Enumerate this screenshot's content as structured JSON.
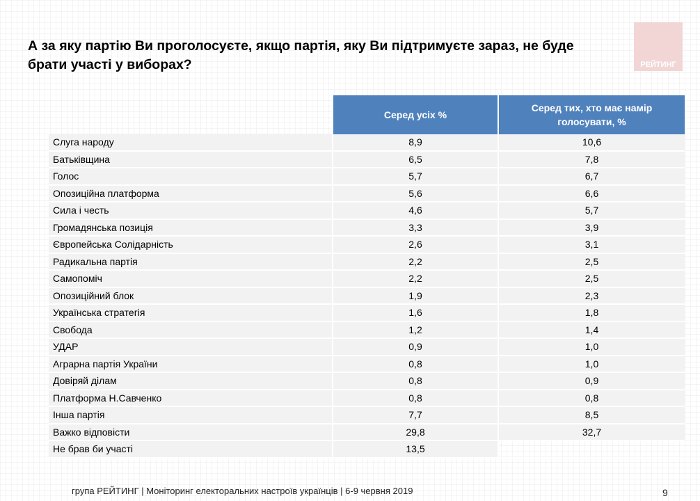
{
  "title": "А за яку партію Ви проголосуєте, якщо партія, яку Ви підтримуєте зараз, не буде брати участі у виборах?",
  "logo": "РЕЙТИНГ",
  "table": {
    "headers": [
      "Серед усіх %",
      "Серед тих, хто має намір голосувати, %"
    ],
    "rows": [
      {
        "name": "Слуга народу",
        "all": "8,9",
        "voters": "10,6"
      },
      {
        "name": "Батьківщина",
        "all": "6,5",
        "voters": "7,8"
      },
      {
        "name": "Голос",
        "all": "5,7",
        "voters": "6,7"
      },
      {
        "name": "Опозиційна платформа",
        "all": "5,6",
        "voters": "6,6"
      },
      {
        "name": "Сила і честь",
        "all": "4,6",
        "voters": "5,7"
      },
      {
        "name": "Громадянська позиція",
        "all": "3,3",
        "voters": "3,9"
      },
      {
        "name": "Європейська Солідарність",
        "all": "2,6",
        "voters": "3,1"
      },
      {
        "name": "Радикальна партія",
        "all": "2,2",
        "voters": "2,5"
      },
      {
        "name": "Самопоміч",
        "all": "2,2",
        "voters": "2,5"
      },
      {
        "name": "Опозиційний блок",
        "all": "1,9",
        "voters": "2,3"
      },
      {
        "name": "Українська стратегія",
        "all": "1,6",
        "voters": "1,8"
      },
      {
        "name": "Свобода",
        "all": "1,2",
        "voters": "1,4"
      },
      {
        "name": "УДАР",
        "all": "0,9",
        "voters": "1,0"
      },
      {
        "name": "Аграрна партія України",
        "all": "0,8",
        "voters": "1,0"
      },
      {
        "name": "Довіряй ділам",
        "all": "0,8",
        "voters": "0,9"
      },
      {
        "name": "Платформа Н.Савченко",
        "all": "0,8",
        "voters": "0,8"
      },
      {
        "name": "Інша партія",
        "all": "7,7",
        "voters": "8,5"
      },
      {
        "name": "Важко відповісти",
        "all": "29,8",
        "voters": "32,7"
      },
      {
        "name": "Не брав би участі",
        "all": "13,5",
        "voters": null
      }
    ]
  },
  "footer": "група РЕЙТИНГ | Моніторинг електоральних настроїв українців  | 6-9 червня 2019",
  "page_number": "9"
}
